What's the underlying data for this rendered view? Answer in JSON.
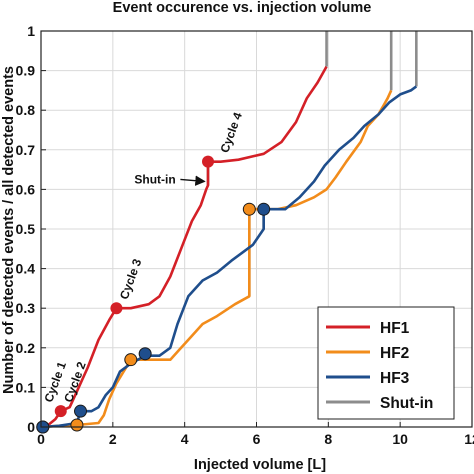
{
  "chart_data": {
    "type": "line",
    "title": "Event occurence vs. injection volume",
    "xlabel": "Injected volume [L]",
    "ylabel": "Number of detected events / all detected events",
    "xlim": [
      0,
      12
    ],
    "ylim": [
      0,
      1
    ],
    "grid": true,
    "legend_position": "bottom-right",
    "x_ticks": [
      "0",
      "2",
      "4",
      "6",
      "8",
      "10",
      "12"
    ],
    "y_ticks": [
      "0",
      "0.1",
      "0.2",
      "0.3",
      "0.4",
      "0.5",
      "0.6",
      "0.7",
      "0.8",
      "0.9",
      "1"
    ],
    "series": [
      {
        "name": "HF1",
        "color": "#d42027",
        "points": [
          [
            0,
            0
          ],
          [
            0.2,
            0.005
          ],
          [
            0.4,
            0.02
          ],
          [
            0.55,
            0.04
          ],
          [
            0.8,
            0.05
          ],
          [
            1.0,
            0.09
          ],
          [
            1.3,
            0.15
          ],
          [
            1.6,
            0.22
          ],
          [
            1.9,
            0.27
          ],
          [
            2.1,
            0.3
          ],
          [
            2.5,
            0.3
          ],
          [
            3.0,
            0.31
          ],
          [
            3.3,
            0.33
          ],
          [
            3.6,
            0.38
          ],
          [
            3.9,
            0.45
          ],
          [
            4.2,
            0.52
          ],
          [
            4.45,
            0.56
          ],
          [
            4.6,
            0.6
          ],
          [
            4.65,
            0.61
          ],
          [
            4.65,
            0.67
          ],
          [
            5.0,
            0.67
          ],
          [
            5.5,
            0.675
          ],
          [
            6.2,
            0.69
          ],
          [
            6.7,
            0.72
          ],
          [
            7.1,
            0.77
          ],
          [
            7.4,
            0.83
          ],
          [
            7.7,
            0.87
          ],
          [
            7.95,
            0.91
          ]
        ]
      },
      {
        "name": "HF2",
        "color": "#f28c1b",
        "points": [
          [
            0,
            0
          ],
          [
            0.5,
            0.003
          ],
          [
            1.0,
            0.005
          ],
          [
            1.6,
            0.01
          ],
          [
            1.75,
            0.03
          ],
          [
            1.9,
            0.07
          ],
          [
            2.1,
            0.11
          ],
          [
            2.3,
            0.14
          ],
          [
            2.5,
            0.17
          ],
          [
            3.0,
            0.17
          ],
          [
            3.6,
            0.17
          ],
          [
            3.9,
            0.2
          ],
          [
            4.2,
            0.23
          ],
          [
            4.5,
            0.26
          ],
          [
            4.9,
            0.28
          ],
          [
            5.4,
            0.31
          ],
          [
            5.8,
            0.33
          ],
          [
            5.8,
            0.55
          ],
          [
            6.2,
            0.55
          ],
          [
            6.6,
            0.55
          ],
          [
            7.1,
            0.56
          ],
          [
            7.6,
            0.58
          ],
          [
            7.95,
            0.6
          ],
          [
            8.2,
            0.63
          ],
          [
            8.5,
            0.67
          ],
          [
            8.9,
            0.72
          ],
          [
            9.1,
            0.76
          ],
          [
            9.4,
            0.79
          ],
          [
            9.65,
            0.83
          ],
          [
            9.75,
            0.85
          ]
        ]
      },
      {
        "name": "HF3",
        "color": "#1f4e8c",
        "points": [
          [
            0,
            0
          ],
          [
            0.5,
            0.003
          ],
          [
            1.0,
            0.01
          ],
          [
            1.1,
            0.04
          ],
          [
            1.4,
            0.04
          ],
          [
            1.6,
            0.05
          ],
          [
            1.8,
            0.08
          ],
          [
            2.0,
            0.1
          ],
          [
            2.2,
            0.14
          ],
          [
            2.5,
            0.16
          ],
          [
            2.9,
            0.18
          ],
          [
            3.3,
            0.18
          ],
          [
            3.6,
            0.2
          ],
          [
            3.8,
            0.26
          ],
          [
            4.1,
            0.33
          ],
          [
            4.5,
            0.37
          ],
          [
            4.9,
            0.39
          ],
          [
            5.3,
            0.42
          ],
          [
            5.6,
            0.44
          ],
          [
            5.9,
            0.46
          ],
          [
            6.2,
            0.5
          ],
          [
            6.2,
            0.55
          ],
          [
            6.8,
            0.55
          ],
          [
            7.2,
            0.58
          ],
          [
            7.6,
            0.62
          ],
          [
            7.9,
            0.66
          ],
          [
            8.3,
            0.7
          ],
          [
            8.7,
            0.73
          ],
          [
            9.0,
            0.76
          ],
          [
            9.4,
            0.79
          ],
          [
            9.7,
            0.82
          ],
          [
            10.0,
            0.84
          ],
          [
            10.3,
            0.85
          ],
          [
            10.45,
            0.86
          ]
        ]
      },
      {
        "name": "Shut-in",
        "color": "#8c8c8c",
        "segments": [
          [
            [
              4.65,
              0.61
            ],
            [
              4.65,
              0.67
            ]
          ],
          [
            [
              5.8,
              0.33
            ],
            [
              5.8,
              0.55
            ]
          ],
          [
            [
              6.2,
              0.5
            ],
            [
              6.2,
              0.55
            ]
          ],
          [
            [
              7.95,
              0.91
            ],
            [
              7.95,
              1.0
            ]
          ],
          [
            [
              9.75,
              0.85
            ],
            [
              9.75,
              1.0
            ]
          ],
          [
            [
              10.45,
              0.86
            ],
            [
              10.45,
              1.0
            ]
          ]
        ]
      }
    ],
    "markers": [
      {
        "series": "HF1",
        "x": 0.55,
        "y": 0.04
      },
      {
        "series": "HF1",
        "x": 2.1,
        "y": 0.3
      },
      {
        "series": "HF1",
        "x": 4.65,
        "y": 0.67
      },
      {
        "series": "HF2",
        "x": 0.05,
        "y": 0.0
      },
      {
        "series": "HF2",
        "x": 1.0,
        "y": 0.005
      },
      {
        "series": "HF2",
        "x": 2.5,
        "y": 0.17
      },
      {
        "series": "HF2",
        "x": 5.8,
        "y": 0.55
      },
      {
        "series": "HF3",
        "x": 0.05,
        "y": 0.0
      },
      {
        "series": "HF3",
        "x": 1.1,
        "y": 0.04
      },
      {
        "series": "HF3",
        "x": 2.9,
        "y": 0.185
      },
      {
        "series": "HF3",
        "x": 6.2,
        "y": 0.55
      }
    ],
    "annotations": [
      {
        "text": "Cycle 1",
        "x": 0.3,
        "y": 0.04,
        "rotate": true
      },
      {
        "text": "Cycle 2",
        "x": 0.85,
        "y": 0.04,
        "rotate": true
      },
      {
        "text": "Cycle 3",
        "x": 2.4,
        "y": 0.3,
        "rotate": true
      },
      {
        "text": "Cycle 4",
        "x": 5.2,
        "y": 0.67,
        "rotate": true
      },
      {
        "text": "Shut-in",
        "x": 2.6,
        "y": 0.615,
        "rotate": false,
        "arrow_to": [
          4.55,
          0.61
        ]
      }
    ],
    "legend": [
      "HF1",
      "HF2",
      "HF3",
      "Shut-in"
    ]
  }
}
